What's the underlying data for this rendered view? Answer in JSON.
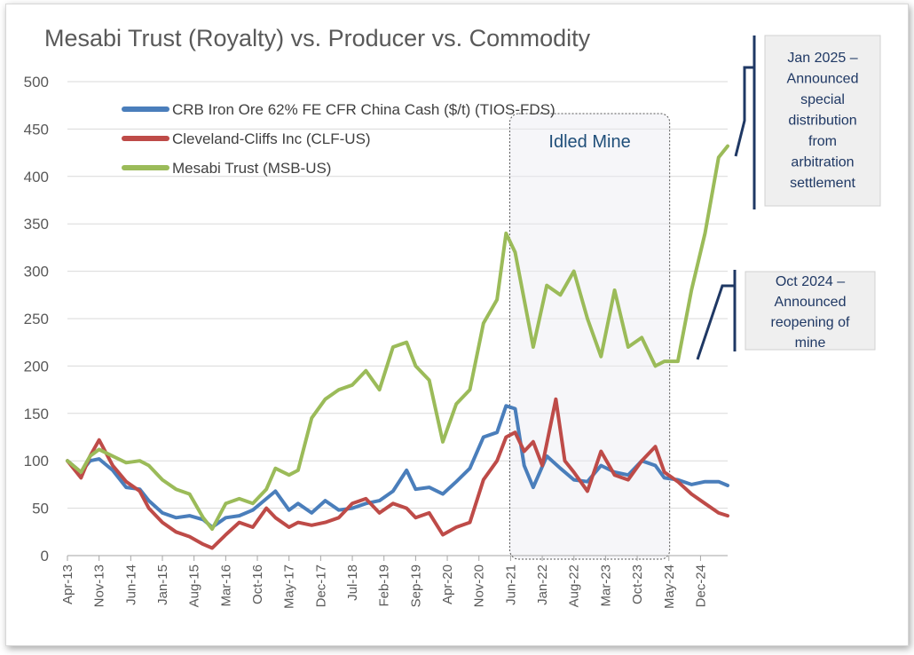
{
  "chart_data": {
    "type": "line",
    "title": "Mesabi Trust (Royalty) vs. Producer vs. Commodity",
    "ylim": [
      0,
      500
    ],
    "yticks": [
      "0",
      "50",
      "100",
      "150",
      "200",
      "250",
      "300",
      "350",
      "400",
      "450",
      "500"
    ],
    "xtick_labels": [
      "Apr-13",
      "Nov-13",
      "Jun-14",
      "Jan-15",
      "Aug-15",
      "Mar-16",
      "Oct-16",
      "May-17",
      "Dec-17",
      "Jul-18",
      "Feb-19",
      "Sep-19",
      "Apr-20",
      "Nov-20",
      "Jun-21",
      "Jan-22",
      "Aug-22",
      "Mar-23",
      "Oct-23",
      "May-24",
      "Dec-24"
    ],
    "x_range": [
      "2013-04",
      "2025-06"
    ],
    "grid": "horizontal",
    "legend_position": "top-left",
    "series": [
      {
        "name": "CRB Iron Ore 62% FE CFR China Cash ($/t) (TIOS-FDS)",
        "color": "#4a7ebb",
        "points": [
          [
            "2013-04",
            100
          ],
          [
            "2013-07",
            88
          ],
          [
            "2013-09",
            100
          ],
          [
            "2013-11",
            102
          ],
          [
            "2014-02",
            90
          ],
          [
            "2014-05",
            72
          ],
          [
            "2014-08",
            70
          ],
          [
            "2014-10",
            58
          ],
          [
            "2015-01",
            45
          ],
          [
            "2015-04",
            40
          ],
          [
            "2015-07",
            42
          ],
          [
            "2015-10",
            38
          ],
          [
            "2015-12",
            30
          ],
          [
            "2016-03",
            40
          ],
          [
            "2016-06",
            42
          ],
          [
            "2016-09",
            48
          ],
          [
            "2016-12",
            60
          ],
          [
            "2017-02",
            68
          ],
          [
            "2017-05",
            48
          ],
          [
            "2017-07",
            55
          ],
          [
            "2017-10",
            45
          ],
          [
            "2018-01",
            58
          ],
          [
            "2018-04",
            48
          ],
          [
            "2018-07",
            50
          ],
          [
            "2018-10",
            55
          ],
          [
            "2019-01",
            58
          ],
          [
            "2019-04",
            68
          ],
          [
            "2019-07",
            90
          ],
          [
            "2019-09",
            70
          ],
          [
            "2019-12",
            72
          ],
          [
            "2020-03",
            65
          ],
          [
            "2020-06",
            78
          ],
          [
            "2020-09",
            92
          ],
          [
            "2020-12",
            125
          ],
          [
            "2021-03",
            130
          ],
          [
            "2021-05",
            158
          ],
          [
            "2021-07",
            155
          ],
          [
            "2021-09",
            95
          ],
          [
            "2021-11",
            72
          ],
          [
            "2022-02",
            105
          ],
          [
            "2022-05",
            92
          ],
          [
            "2022-08",
            80
          ],
          [
            "2022-11",
            78
          ],
          [
            "2023-02",
            95
          ],
          [
            "2023-05",
            88
          ],
          [
            "2023-08",
            85
          ],
          [
            "2023-11",
            100
          ],
          [
            "2024-02",
            95
          ],
          [
            "2024-04",
            82
          ],
          [
            "2024-07",
            80
          ],
          [
            "2024-10",
            75
          ],
          [
            "2025-01",
            78
          ],
          [
            "2025-04",
            78
          ],
          [
            "2025-06",
            74
          ]
        ]
      },
      {
        "name": "Cleveland-Cliffs Inc (CLF-US)",
        "color": "#be4b48",
        "points": [
          [
            "2013-04",
            100
          ],
          [
            "2013-07",
            82
          ],
          [
            "2013-09",
            105
          ],
          [
            "2013-11",
            122
          ],
          [
            "2014-02",
            95
          ],
          [
            "2014-05",
            78
          ],
          [
            "2014-08",
            68
          ],
          [
            "2014-10",
            50
          ],
          [
            "2015-01",
            35
          ],
          [
            "2015-04",
            25
          ],
          [
            "2015-07",
            20
          ],
          [
            "2015-10",
            12
          ],
          [
            "2015-12",
            8
          ],
          [
            "2016-03",
            22
          ],
          [
            "2016-06",
            35
          ],
          [
            "2016-09",
            30
          ],
          [
            "2016-12",
            50
          ],
          [
            "2017-02",
            40
          ],
          [
            "2017-05",
            30
          ],
          [
            "2017-07",
            35
          ],
          [
            "2017-10",
            32
          ],
          [
            "2018-01",
            35
          ],
          [
            "2018-04",
            40
          ],
          [
            "2018-07",
            55
          ],
          [
            "2018-10",
            60
          ],
          [
            "2019-01",
            45
          ],
          [
            "2019-04",
            55
          ],
          [
            "2019-07",
            50
          ],
          [
            "2019-09",
            40
          ],
          [
            "2019-12",
            45
          ],
          [
            "2020-03",
            22
          ],
          [
            "2020-06",
            30
          ],
          [
            "2020-09",
            35
          ],
          [
            "2020-12",
            80
          ],
          [
            "2021-03",
            100
          ],
          [
            "2021-05",
            125
          ],
          [
            "2021-07",
            130
          ],
          [
            "2021-09",
            110
          ],
          [
            "2021-11",
            120
          ],
          [
            "2022-01",
            95
          ],
          [
            "2022-04",
            165
          ],
          [
            "2022-06",
            100
          ],
          [
            "2022-08",
            88
          ],
          [
            "2022-11",
            68
          ],
          [
            "2023-02",
            110
          ],
          [
            "2023-05",
            85
          ],
          [
            "2023-08",
            80
          ],
          [
            "2023-11",
            100
          ],
          [
            "2024-02",
            115
          ],
          [
            "2024-04",
            88
          ],
          [
            "2024-07",
            78
          ],
          [
            "2024-10",
            65
          ],
          [
            "2025-01",
            55
          ],
          [
            "2025-04",
            45
          ],
          [
            "2025-06",
            42
          ]
        ]
      },
      {
        "name": "Mesabi Trust (MSB-US)",
        "color": "#9bbb59",
        "points": [
          [
            "2013-04",
            100
          ],
          [
            "2013-07",
            88
          ],
          [
            "2013-09",
            105
          ],
          [
            "2013-11",
            112
          ],
          [
            "2014-02",
            105
          ],
          [
            "2014-05",
            98
          ],
          [
            "2014-08",
            100
          ],
          [
            "2014-10",
            95
          ],
          [
            "2015-01",
            80
          ],
          [
            "2015-04",
            70
          ],
          [
            "2015-07",
            65
          ],
          [
            "2015-10",
            40
          ],
          [
            "2015-12",
            28
          ],
          [
            "2016-03",
            55
          ],
          [
            "2016-06",
            60
          ],
          [
            "2016-09",
            55
          ],
          [
            "2016-12",
            70
          ],
          [
            "2017-02",
            92
          ],
          [
            "2017-05",
            85
          ],
          [
            "2017-07",
            90
          ],
          [
            "2017-10",
            145
          ],
          [
            "2018-01",
            165
          ],
          [
            "2018-04",
            175
          ],
          [
            "2018-07",
            180
          ],
          [
            "2018-10",
            195
          ],
          [
            "2019-01",
            175
          ],
          [
            "2019-04",
            220
          ],
          [
            "2019-07",
            225
          ],
          [
            "2019-09",
            200
          ],
          [
            "2019-12",
            185
          ],
          [
            "2020-03",
            120
          ],
          [
            "2020-06",
            160
          ],
          [
            "2020-09",
            175
          ],
          [
            "2020-12",
            245
          ],
          [
            "2021-03",
            270
          ],
          [
            "2021-05",
            340
          ],
          [
            "2021-07",
            320
          ],
          [
            "2021-09",
            270
          ],
          [
            "2021-11",
            220
          ],
          [
            "2022-02",
            285
          ],
          [
            "2022-05",
            275
          ],
          [
            "2022-08",
            300
          ],
          [
            "2022-11",
            250
          ],
          [
            "2023-02",
            210
          ],
          [
            "2023-05",
            280
          ],
          [
            "2023-08",
            220
          ],
          [
            "2023-11",
            230
          ],
          [
            "2024-02",
            200
          ],
          [
            "2024-04",
            205
          ],
          [
            "2024-07",
            205
          ],
          [
            "2024-10",
            280
          ],
          [
            "2025-01",
            340
          ],
          [
            "2025-04",
            420
          ],
          [
            "2025-06",
            432
          ]
        ]
      }
    ],
    "annotations": {
      "shaded_region": {
        "label": "Idled Mine",
        "x_start": "2021-07",
        "x_end": "2024-04"
      },
      "callouts": [
        {
          "lines": [
            "Jan 2025 –",
            "Announced",
            "special",
            "distribution",
            "from",
            "arbitration",
            "settlement"
          ]
        },
        {
          "lines": [
            "Oct 2024 –",
            "Announced",
            "reopening of",
            "mine"
          ]
        }
      ]
    }
  }
}
